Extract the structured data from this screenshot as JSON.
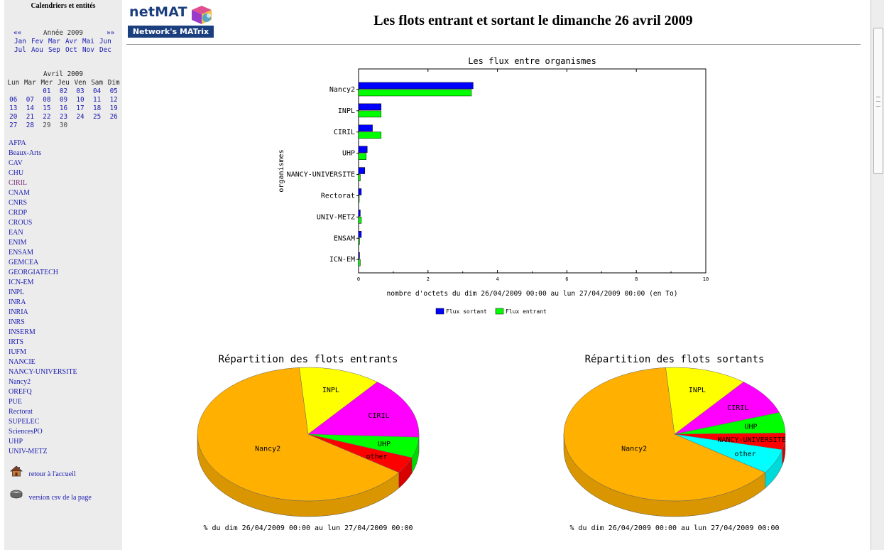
{
  "sidebar": {
    "title": "Calendriers et entités",
    "year_nav": {
      "prev": "««",
      "label": "Année 2009",
      "next": "»»"
    },
    "months_row1": [
      "Jan",
      "Fev",
      "Mar",
      "Avr",
      "Mai",
      "Jun"
    ],
    "months_row2": [
      "Jul",
      "Aou",
      "Sep",
      "Oct",
      "Nov",
      "Dec"
    ],
    "calendar": {
      "title": "Avril 2009",
      "weekdays": [
        "Lun",
        "Mar",
        "Mer",
        "Jeu",
        "Ven",
        "Sam",
        "Dim"
      ],
      "weeks": [
        [
          "",
          "",
          "01",
          "02",
          "03",
          "04",
          "05"
        ],
        [
          "06",
          "07",
          "08",
          "09",
          "10",
          "11",
          "12"
        ],
        [
          "13",
          "14",
          "15",
          "16",
          "17",
          "18",
          "19"
        ],
        [
          "20",
          "21",
          "22",
          "23",
          "24",
          "25",
          "26"
        ],
        [
          "27",
          "28",
          "29",
          "30",
          "",
          "",
          ""
        ]
      ]
    },
    "entities": [
      "AFPA",
      "Beaux-Arts",
      "CAV",
      "CHU",
      "CIRIL",
      "CNAM",
      "CNRS",
      "CRDP",
      "CROUS",
      "EAN",
      "ENIM",
      "ENSAM",
      "GEMCEA",
      "GEORGIATECH",
      "ICN-EM",
      "INPL",
      "INRA",
      "INRIA",
      "INRS",
      "INSERM",
      "IRTS",
      "IUFM",
      "NANCIE",
      "NANCY-UNIVERSITE",
      "Nancy2",
      "OREFQ",
      "PUE",
      "Rectorat",
      "SUPELEC",
      "SciencesPO",
      "UHP",
      "UNIV-METZ"
    ],
    "home_link": "retour à l'accueil",
    "csv_link": "version csv de la page",
    "home_icon": "house-icon",
    "csv_icon": "disk-icon"
  },
  "logo": {
    "name": "netMAT",
    "badge": "Network's MATrix"
  },
  "page_title": "Les flots entrant et sortant le dimanche 26 avril 2009",
  "chart_data": [
    {
      "type": "bar",
      "orientation": "horizontal",
      "title": "Les flux entre organismes",
      "xlabel": "nombre d'octets du dim 26/04/2009 00:00 au lun 27/04/2009 00:00 (en To)",
      "ylabel": "organismes",
      "xlim": [
        0,
        10
      ],
      "xticks": [
        0,
        2,
        4,
        6,
        8,
        10
      ],
      "categories": [
        "Nancy2",
        "INPL",
        "CIRIL",
        "UHP",
        "NANCY-UNIVERSITE",
        "Rectorat",
        "UNIV-METZ",
        "ENSAM",
        "ICN-EM"
      ],
      "series": [
        {
          "name": "Flux sortant",
          "color": "#0000ff",
          "values": [
            3.3,
            0.65,
            0.4,
            0.25,
            0.18,
            0.08,
            0.05,
            0.08,
            0.03
          ]
        },
        {
          "name": "Flux entrant",
          "color": "#00ff00",
          "values": [
            3.25,
            0.65,
            0.65,
            0.22,
            0.05,
            0.02,
            0.08,
            0.03,
            0.05
          ]
        }
      ],
      "legend": "bottom"
    },
    {
      "type": "pie",
      "title": "Répartition des flots entrants",
      "xlabel": "% du dim 26/04/2009 00:00 au lun 27/04/2009 00:00",
      "slices": [
        {
          "label": "Nancy2",
          "value": 64,
          "color": "#ffb000"
        },
        {
          "label": "INPL",
          "value": 12,
          "color": "#ffff00"
        },
        {
          "label": "CIRIL",
          "value": 15,
          "color": "#ff00ff"
        },
        {
          "label": "UHP",
          "value": 5,
          "color": "#00ff00"
        },
        {
          "label": "other",
          "value": 4,
          "color": "#ff0000"
        }
      ]
    },
    {
      "type": "pie",
      "title": "Répartition des flots sortants",
      "xlabel": "% du dim 26/04/2009 00:00 au lun 27/04/2009 00:00",
      "slices": [
        {
          "label": "Nancy2",
          "value": 64,
          "color": "#ffb000"
        },
        {
          "label": "INPL",
          "value": 12,
          "color": "#ffff00"
        },
        {
          "label": "CIRIL",
          "value": 9,
          "color": "#ff00ff"
        },
        {
          "label": "UHP",
          "value": 5,
          "color": "#00ff00"
        },
        {
          "label": "NANCY-UNIVERSITE",
          "value": 4,
          "color": "#ff0000"
        },
        {
          "label": "other",
          "value": 6,
          "color": "#00ffff"
        }
      ]
    }
  ]
}
